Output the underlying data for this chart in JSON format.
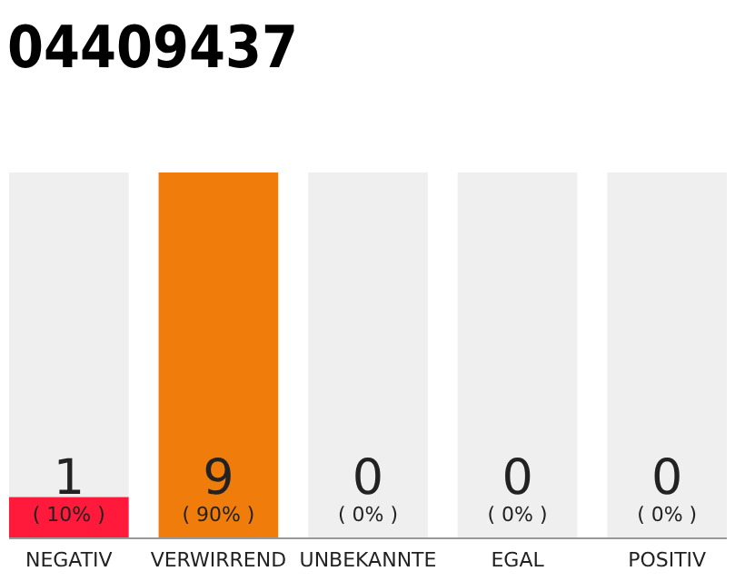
{
  "chart_data": {
    "type": "bar",
    "title": "04409437",
    "stacked": true,
    "categories": [
      "NEGATIV",
      "VERWIRREND",
      "UNBEKANNTE",
      "EGAL",
      "POSITIV"
    ],
    "series": [
      {
        "values": [
          1,
          9,
          0,
          0,
          0
        ],
        "colors": [
          "#ff1a3c",
          "#f07c0c",
          "#cccccc",
          "#cccccc",
          "#cccccc"
        ],
        "value_labels": [
          "1",
          "9",
          null,
          null,
          null
        ]
      },
      {
        "values": [
          8,
          0,
          9,
          9,
          9
        ],
        "color": "#efefef"
      }
    ],
    "ylim": [
      0,
      9
    ],
    "tick_labels": "x",
    "annotations": [
      "( 10% )",
      "( 90% )",
      "( 0% )",
      "( 0% )",
      "( 0% )",
      {
        "text": "0",
        "x": "UNBEKANNTE",
        "y": 0
      },
      {
        "text": "0",
        "x": "EGAL",
        "y": 0
      },
      {
        "text": "0",
        "x": "POSITIV",
        "y": 0
      }
    ]
  }
}
